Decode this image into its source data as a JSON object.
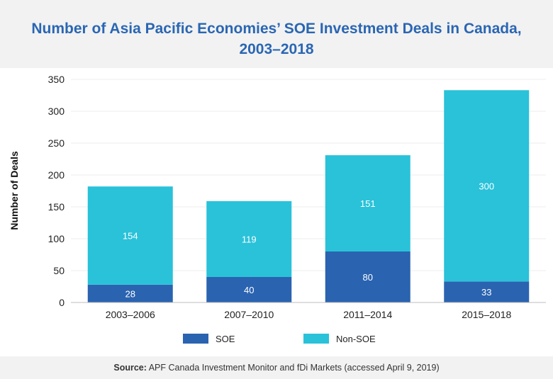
{
  "title_line1": "Number of Asia Pacific Economies’ SOE Investment Deals in Canada,",
  "title_line2": "2003–2018",
  "source_label": "Source:",
  "source_text": "APF Canada Investment Monitor and fDi Markets (accessed April 9, 2019)",
  "colors": {
    "soe": "#2a63b0",
    "non_soe": "#29c2d9",
    "title": "#2a66b3"
  },
  "chart_data": {
    "type": "bar",
    "stacked": true,
    "categories": [
      "2003–2006",
      "2007–2010",
      "2011–2014",
      "2015–2018"
    ],
    "series": [
      {
        "name": "SOE",
        "values": [
          28,
          40,
          80,
          33
        ]
      },
      {
        "name": "Non-SOE",
        "values": [
          154,
          119,
          151,
          300
        ]
      }
    ],
    "ylabel": "Number of Deals",
    "ylim": [
      0,
      350
    ],
    "yticks": [
      0,
      50,
      100,
      150,
      200,
      250,
      300,
      350
    ],
    "grid": true,
    "legend": "bottom"
  }
}
